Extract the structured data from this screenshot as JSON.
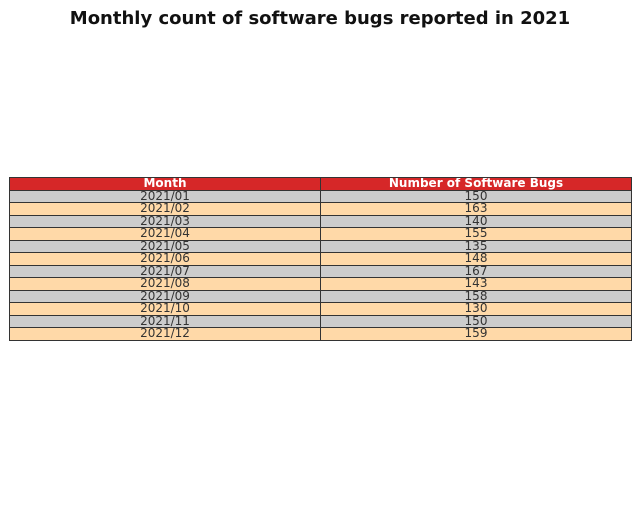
{
  "title": "Monthly count of software bugs reported in 2021",
  "colors": {
    "header_bg": "#d62728",
    "row_odd": "#cccccc",
    "row_even": "#ffd9a8",
    "border": "#333333"
  },
  "chart_data": {
    "type": "table",
    "title": "Monthly count of software bugs reported in 2021",
    "columns": [
      "Month",
      "Number of Software Bugs"
    ],
    "rows": [
      [
        "2021/01",
        "150"
      ],
      [
        "2021/02",
        "163"
      ],
      [
        "2021/03",
        "140"
      ],
      [
        "2021/04",
        "155"
      ],
      [
        "2021/05",
        "135"
      ],
      [
        "2021/06",
        "148"
      ],
      [
        "2021/07",
        "167"
      ],
      [
        "2021/08",
        "143"
      ],
      [
        "2021/09",
        "158"
      ],
      [
        "2021/10",
        "130"
      ],
      [
        "2021/11",
        "150"
      ],
      [
        "2021/12",
        "159"
      ]
    ]
  }
}
